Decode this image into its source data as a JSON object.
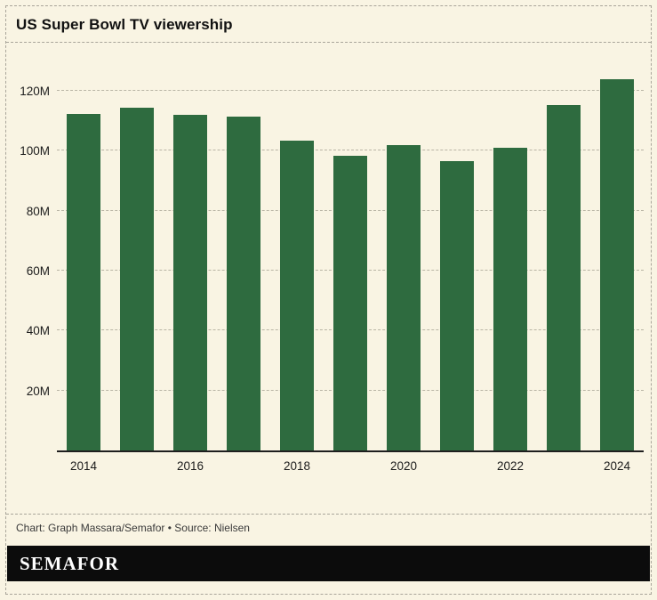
{
  "header": {
    "title": "US Super Bowl TV viewership"
  },
  "footer": {
    "credit": "Chart: Graph Massara/Semafor • Source: Nielsen"
  },
  "banner": {
    "logo": "SEMAFOR"
  },
  "colors": {
    "background": "#f9f4e3",
    "frame_dash": "#a9a59a",
    "bar": "#2e6b3f",
    "grid": "#b9b5a5",
    "axis": "#1f1f1f",
    "banner_bg": "#0c0c0c",
    "banner_text": "#ffffff"
  },
  "chart_data": {
    "type": "bar",
    "title": "US Super Bowl TV viewership",
    "categories": [
      "2014",
      "2015",
      "2016",
      "2017",
      "2018",
      "2019",
      "2020",
      "2021",
      "2022",
      "2023",
      "2024"
    ],
    "values": [
      112.2,
      114.4,
      111.9,
      111.3,
      103.4,
      98.2,
      102.0,
      96.4,
      101.1,
      115.1,
      123.7
    ],
    "value_unit": "M viewers",
    "ylim": [
      0,
      136
    ],
    "yticks": [
      20,
      40,
      60,
      80,
      100,
      120
    ],
    "ytick_suffix": "M",
    "xticks_shown": [
      "2014",
      "2016",
      "2018",
      "2020",
      "2022",
      "2024"
    ],
    "grid": "horizontal-dashed",
    "legend": "none"
  }
}
